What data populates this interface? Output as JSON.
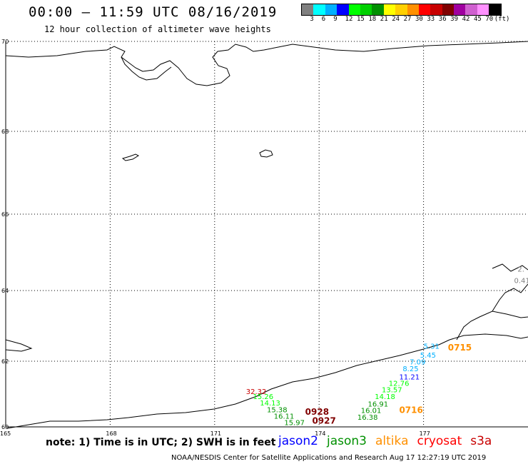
{
  "header": {
    "title": "00:00 – 11:59 UTC 08/16/2019",
    "subtitle": "12 hour collection of altimeter wave heights"
  },
  "legend": {
    "unit": "(ft)",
    "colors": [
      "#808080",
      "#00ffff",
      "#00b0ff",
      "#0000ff",
      "#00ff00",
      "#00d000",
      "#009000",
      "#ffff00",
      "#ffd000",
      "#ff9000",
      "#ff0000",
      "#c80000",
      "#800000",
      "#a000a0",
      "#d060d0",
      "#ff90ff",
      "#000000"
    ],
    "labels": [
      "3",
      "6",
      "9",
      "12",
      "15",
      "18",
      "21",
      "24",
      "27",
      "30",
      "33",
      "36",
      "39",
      "42",
      "45",
      "70"
    ]
  },
  "axes": {
    "lat_labels": [
      "70",
      "68",
      "66",
      "64",
      "62",
      "60"
    ],
    "lon_labels": [
      "165",
      "168",
      "171",
      "174",
      "177"
    ]
  },
  "chart_data": {
    "type": "scatter",
    "x_axis": "longitude",
    "y_axis": "latitude",
    "points": [
      {
        "label": "2.",
        "color": "#808080",
        "lon": 179.7,
        "lat": 64.5
      },
      {
        "label": "0.41",
        "color": "#808080",
        "lon": 179.6,
        "lat": 64.2
      },
      {
        "label": "0715",
        "color": "#ff9000",
        "lon": 177.7,
        "lat": 62.3
      },
      {
        "label": "5.31",
        "color": "#00b0ff",
        "lon": 177.0,
        "lat": 62.35
      },
      {
        "label": "5.45",
        "color": "#00b0ff",
        "lon": 176.9,
        "lat": 62.1
      },
      {
        "label": "7.09",
        "color": "#00b0ff",
        "lon": 176.6,
        "lat": 61.9
      },
      {
        "label": "8.25",
        "color": "#00b0ff",
        "lon": 176.4,
        "lat": 61.7
      },
      {
        "label": "11.21",
        "color": "#0000ff",
        "lon": 176.3,
        "lat": 61.45
      },
      {
        "label": "12.76",
        "color": "#00ff00",
        "lon": 176.0,
        "lat": 61.25
      },
      {
        "label": "13.57",
        "color": "#00ff00",
        "lon": 175.8,
        "lat": 61.05
      },
      {
        "label": "14.18",
        "color": "#00ff00",
        "lon": 175.6,
        "lat": 60.85
      },
      {
        "label": "16.91",
        "color": "#009000",
        "lon": 175.4,
        "lat": 60.62
      },
      {
        "label": "16.01",
        "color": "#009000",
        "lon": 175.2,
        "lat": 60.42
      },
      {
        "label": "16.38",
        "color": "#009000",
        "lon": 175.1,
        "lat": 60.22
      },
      {
        "label": "0716",
        "color": "#ff9000",
        "lon": 176.3,
        "lat": 60.42
      },
      {
        "label": "32.32",
        "color": "#c80000",
        "lon": 171.9,
        "lat": 61.0
      },
      {
        "label": "15.26",
        "color": "#00ff00",
        "lon": 172.1,
        "lat": 60.85
      },
      {
        "label": "14.13",
        "color": "#00ff00",
        "lon": 172.3,
        "lat": 60.65
      },
      {
        "label": "15.38",
        "color": "#009000",
        "lon": 172.5,
        "lat": 60.45
      },
      {
        "label": "16.11",
        "color": "#009000",
        "lon": 172.7,
        "lat": 60.25
      },
      {
        "label": "15.97",
        "color": "#009000",
        "lon": 173.0,
        "lat": 60.05
      },
      {
        "label": "0928",
        "color": "#800000",
        "lon": 173.6,
        "lat": 60.37
      },
      {
        "label": "0927",
        "color": "#800000",
        "lon": 173.8,
        "lat": 60.1
      }
    ]
  },
  "footer": {
    "note": "note: 1) Time is in UTC; 2) SWH is in feet",
    "satellites": [
      {
        "name": "jason2",
        "color": "#0000ff"
      },
      {
        "name": "jason3",
        "color": "#009000"
      },
      {
        "name": "altika",
        "color": "#ff9000"
      },
      {
        "name": "cryosat",
        "color": "#ff0000"
      },
      {
        "name": "s3a",
        "color": "#c80000"
      }
    ],
    "credits": "NOAA/NESDIS Center for Satellite Applications and Research    Aug 17 12:27:19 UTC 2019"
  }
}
